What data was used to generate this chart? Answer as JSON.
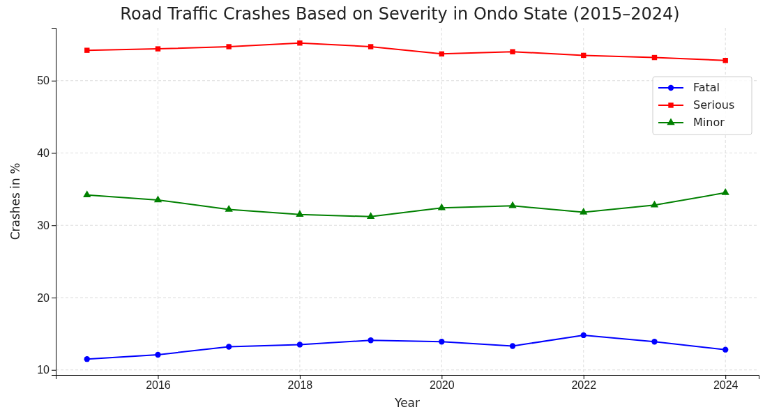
{
  "chart_data": {
    "type": "line",
    "title": "Road Traffic Crashes Based on Severity in Ondo State (2015–2024)",
    "xlabel": "Year",
    "ylabel": "Crashes in %",
    "x": [
      2015,
      2016,
      2017,
      2018,
      2019,
      2020,
      2021,
      2022,
      2023,
      2024
    ],
    "series": [
      {
        "name": "Fatal",
        "color": "#0000ff",
        "marker": "circle",
        "values": [
          11.5,
          12.1,
          13.2,
          13.5,
          14.1,
          13.9,
          13.3,
          14.8,
          13.9,
          12.8
        ]
      },
      {
        "name": "Serious",
        "color": "#ff0000",
        "marker": "square",
        "values": [
          54.2,
          54.4,
          54.7,
          55.2,
          54.7,
          53.7,
          54.0,
          53.5,
          53.2,
          52.8
        ]
      },
      {
        "name": "Minor",
        "color": "#008000",
        "marker": "triangle",
        "values": [
          34.2,
          33.5,
          32.2,
          31.5,
          31.2,
          32.4,
          32.7,
          31.8,
          32.8,
          34.5
        ]
      }
    ],
    "xlim": [
      2014.56,
      2024.47
    ],
    "xticks": [
      2016,
      2018,
      2020,
      2022,
      2024
    ],
    "ylim": [
      9.3,
      57.3
    ],
    "yticks": [
      10,
      20,
      30,
      40,
      50
    ],
    "grid": true,
    "legend": "top right",
    "line_style": "solid"
  }
}
